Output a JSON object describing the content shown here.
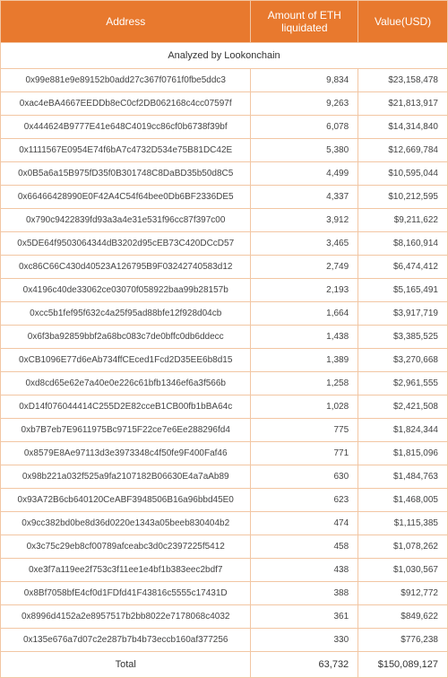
{
  "header": {
    "address": "Address",
    "amount": "Amount of ETH liquidated",
    "value": "Value(USD)"
  },
  "subheader": "Analyzed by Lookonchain",
  "rows": [
    {
      "address": "0x99e881e9e89152b0add27c367f0761f0fbe5ddc3",
      "amount": "9,834",
      "value": "$23,158,478"
    },
    {
      "address": "0xac4eBA4667EEDDb8eC0cf2DB062168c4cc07597f",
      "amount": "9,263",
      "value": "$21,813,917"
    },
    {
      "address": "0x444624B9777E41e648C4019cc86cf0b6738f39bf",
      "amount": "6,078",
      "value": "$14,314,840"
    },
    {
      "address": "0x1111567E0954E74f6bA7c4732D534e75B81DC42E",
      "amount": "5,380",
      "value": "$12,669,784"
    },
    {
      "address": "0x0B5a6a15B975fD35f0B301748C8DaBD35b50d8C5",
      "amount": "4,499",
      "value": "$10,595,044"
    },
    {
      "address": "0x66466428990E0F42A4C54f64bee0Db6BF2336DE5",
      "amount": "4,337",
      "value": "$10,212,595"
    },
    {
      "address": "0x790c9422839fd93a3a4e31e531f96cc87f397c00",
      "amount": "3,912",
      "value": "$9,211,622"
    },
    {
      "address": "0x5DE64f9503064344dB3202d95cEB73C420DCcD57",
      "amount": "3,465",
      "value": "$8,160,914"
    },
    {
      "address": "0xc86C66C430d40523A126795B9F03242740583d12",
      "amount": "2,749",
      "value": "$6,474,412"
    },
    {
      "address": "0x4196c40de33062ce03070f058922baa99b28157b",
      "amount": "2,193",
      "value": "$5,165,491"
    },
    {
      "address": "0xcc5b1fef95f632c4a25f95ad88bfe12f928d04cb",
      "amount": "1,664",
      "value": "$3,917,719"
    },
    {
      "address": "0x6f3ba92859bbf2a68bc083c7de0bffc0db6ddecc",
      "amount": "1,438",
      "value": "$3,385,525"
    },
    {
      "address": "0xCB1096E77d6eAb734ffCEced1Fcd2D35EE6b8d15",
      "amount": "1,389",
      "value": "$3,270,668"
    },
    {
      "address": "0xd8cd65e62e7a40e0e226c61bfb1346ef6a3f566b",
      "amount": "1,258",
      "value": "$2,961,555"
    },
    {
      "address": "0xD14f076044414C255D2E82cceB1CB00fb1bBA64c",
      "amount": "1,028",
      "value": "$2,421,508"
    },
    {
      "address": "0xb7B7eb7E9611975Bc9715F22ce7e6Ee288296fd4",
      "amount": "775",
      "value": "$1,824,344"
    },
    {
      "address": "0x8579E8Ae97113d3e3973348c4f50fe9F400Faf46",
      "amount": "771",
      "value": "$1,815,096"
    },
    {
      "address": "0x98b221a032f525a9fa2107182B06630E4a7aAb89",
      "amount": "630",
      "value": "$1,484,763"
    },
    {
      "address": "0x93A72B6cb640120CeABF3948506B16a96bbd45E0",
      "amount": "623",
      "value": "$1,468,005"
    },
    {
      "address": "0x9cc382bd0be8d36d0220e1343a05beeb830404b2",
      "amount": "474",
      "value": "$1,115,385"
    },
    {
      "address": "0x3c75c29eb8cf00789afceabc3d0c2397225f5412",
      "amount": "458",
      "value": "$1,078,262"
    },
    {
      "address": "0xe3f7a119ee2f753c3f11ee1e4bf1b383eec2bdf7",
      "amount": "438",
      "value": "$1,030,567"
    },
    {
      "address": "0x8Bf7058bfE4cf0d1FDfd41F43816c5555c17431D",
      "amount": "388",
      "value": "$912,772"
    },
    {
      "address": "0x8996d4152a2e8957517b2bb8022e7178068c4032",
      "amount": "361",
      "value": "$849,622"
    },
    {
      "address": "0x135e676a7d07c2e287b7b4b73eccb160af377256",
      "amount": "330",
      "value": "$776,238"
    }
  ],
  "total": {
    "label": "Total",
    "amount": "63,732",
    "value": "$150,089,127"
  },
  "style": {
    "header_bg": "#e8792e",
    "header_fg": "#ffffff",
    "border_color": "#f2c6a3",
    "row_bg": "#ffffff",
    "text_color": "#444444"
  }
}
